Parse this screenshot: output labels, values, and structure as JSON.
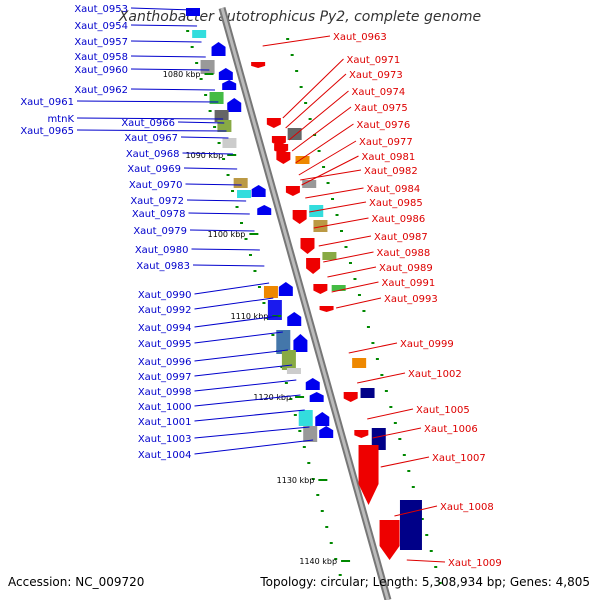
{
  "title": "Xanthobacter autotrophicus Py2, complete genome",
  "footer": {
    "accession": "Accession: NC_009720",
    "stats": "Topology: circular; Length: 5,308,934 bp; Genes: 4,805"
  },
  "colors": {
    "left_label": "#0000cc",
    "right_label": "#dd0000",
    "backbone": "#999999",
    "strand_forward": "#0000ee",
    "strand_reverse": "#ee0000",
    "tick": "#008800"
  },
  "scale_marks": [
    "1080 kbp",
    "1090 kbp",
    "1100 kbp",
    "1110 kbp",
    "1120 kbp",
    "1130 kbp",
    "1140 kbp"
  ],
  "left_labels": [
    "Xaut_0953",
    "Xaut_0954",
    "Xaut_0957",
    "Xaut_0958",
    "Xaut_0960",
    "Xaut_0962",
    "Xaut_0961",
    "mtnK",
    "Xaut_0966",
    "Xaut_0965",
    "Xaut_0967",
    "Xaut_0968",
    "Xaut_0969",
    "Xaut_0970",
    "Xaut_0972",
    "Xaut_0978",
    "Xaut_0979",
    "Xaut_0980",
    "Xaut_0983",
    "Xaut_0990",
    "Xaut_0992",
    "Xaut_0994",
    "Xaut_0995",
    "Xaut_0996",
    "Xaut_0997",
    "Xaut_0998",
    "Xaut_1000",
    "Xaut_1001",
    "Xaut_1003",
    "Xaut_1004"
  ],
  "right_labels": [
    "Xaut_0963",
    "Xaut_0971",
    "Xaut_0973",
    "Xaut_0974",
    "Xaut_0975",
    "Xaut_0976",
    "Xaut_0977",
    "Xaut_0981",
    "Xaut_0982",
    "Xaut_0984",
    "Xaut_0985",
    "Xaut_0986",
    "Xaut_0987",
    "Xaut_0988",
    "Xaut_0989",
    "Xaut_0991",
    "Xaut_0993",
    "Xaut_0999",
    "Xaut_1002",
    "Xaut_1005",
    "Xaut_1006",
    "Xaut_1007",
    "Xaut_1008",
    "Xaut_1009"
  ]
}
